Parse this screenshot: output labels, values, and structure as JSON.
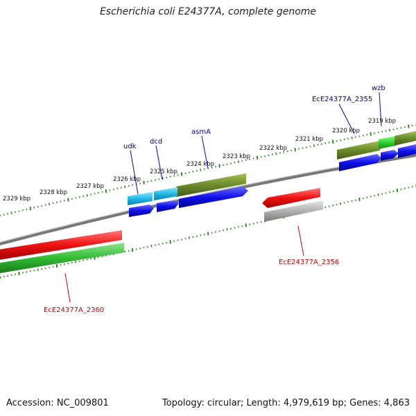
{
  "title": "Escherichia coli E24377A, complete genome",
  "footer": {
    "accession": "Accession: NC_009801",
    "topology": "Topology: circular; Length: 4,979,619 bp; Genes: 4,863"
  },
  "scale_labels": [
    "2329 kbp",
    "2328 kbp",
    "2327 kbp",
    "2326 kbp",
    "2325 kbp",
    "2324 kbp",
    "2323 kbp",
    "2322 kbp",
    "2321 kbp",
    "2320 kbp",
    "2319 kbp"
  ],
  "genes": {
    "udk": "udk",
    "dcd": "dcd",
    "asmA": "asmA",
    "ec2355": "EcE24377A_2355",
    "wzb": "wzb",
    "ec2356": "EcE24377A_2356",
    "ec2360": "EcE24377A_2360"
  },
  "colors": {
    "backbone": "#808080",
    "tick": "#2e8b1e",
    "olive": "#6b8a2a",
    "cyan": "#22b8e6",
    "blue": "#1010e8",
    "red": "#ee1111",
    "green": "#33bb33",
    "grey": "#b0b0b0",
    "label_blue": "#00008b",
    "label_red": "#cc0000"
  }
}
